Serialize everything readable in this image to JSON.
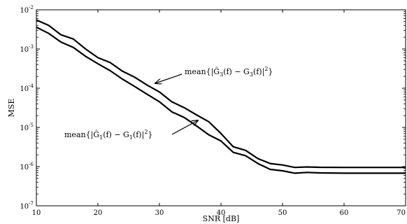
{
  "chart_data": {
    "type": "line",
    "xlabel": "SNR [dB]",
    "ylabel": "MSE",
    "xlim": [
      10,
      70
    ],
    "ylim_log10": [
      -7,
      -2
    ],
    "yscale": "log",
    "grid": false,
    "x_ticks": [
      10,
      20,
      30,
      40,
      50,
      60,
      70
    ],
    "y_ticks": [
      {
        "base": "10",
        "exp": "-7"
      },
      {
        "base": "10",
        "exp": "-6"
      },
      {
        "base": "10",
        "exp": "-5"
      },
      {
        "base": "10",
        "exp": "-4"
      },
      {
        "base": "10",
        "exp": "-3"
      },
      {
        "base": "10",
        "exp": "-2"
      }
    ],
    "x": [
      10,
      12,
      14,
      16,
      18,
      20,
      22,
      24,
      26,
      28,
      30,
      32,
      34,
      36,
      38,
      40,
      42,
      44,
      46,
      48,
      50,
      52,
      54,
      56,
      60,
      65,
      70
    ],
    "series": [
      {
        "color": "#000000",
        "values": [
          0.0055,
          0.004,
          0.0023,
          0.0018,
          0.001,
          0.0006,
          0.00045,
          0.00027,
          0.00019,
          0.00012,
          8e-05,
          4.5e-05,
          3.2e-05,
          2.1e-05,
          1.4e-05,
          7e-06,
          3.2e-06,
          2.6e-06,
          1.6e-06,
          1.2e-06,
          1.1e-06,
          9.5e-07,
          9.8e-07,
          9.6e-07,
          9.5e-07,
          9.5e-07,
          9.5e-07
        ]
      },
      {
        "color": "#000000",
        "values": [
          0.0036,
          0.0025,
          0.0015,
          0.0011,
          0.00065,
          0.00042,
          0.00028,
          0.00017,
          0.00011,
          7e-05,
          4.5e-05,
          2.5e-05,
          1.8e-05,
          1.1e-05,
          6.5e-06,
          4.5e-06,
          2.3e-06,
          1.9e-06,
          1.2e-06,
          8.5e-07,
          7.8e-07,
          6.8e-07,
          7.1e-07,
          6.9e-07,
          6.8e-07,
          6.8e-07,
          6.8e-07
        ]
      }
    ],
    "annotations": [
      {
        "prefix": "mean{|",
        "sym_hat": "Ĝ",
        "sub1": "3",
        "mid": "(f) − G",
        "sub2": "3",
        "suffix_a": "(f)|",
        "sup": "2",
        "suffix_b": "}"
      },
      {
        "prefix": "mean{|",
        "sym_hat": "Ĝ",
        "sub1": "1",
        "mid": "(f) − G",
        "sub2": "1",
        "suffix_a": "(f)|",
        "sup": "2",
        "suffix_b": "}"
      }
    ]
  }
}
